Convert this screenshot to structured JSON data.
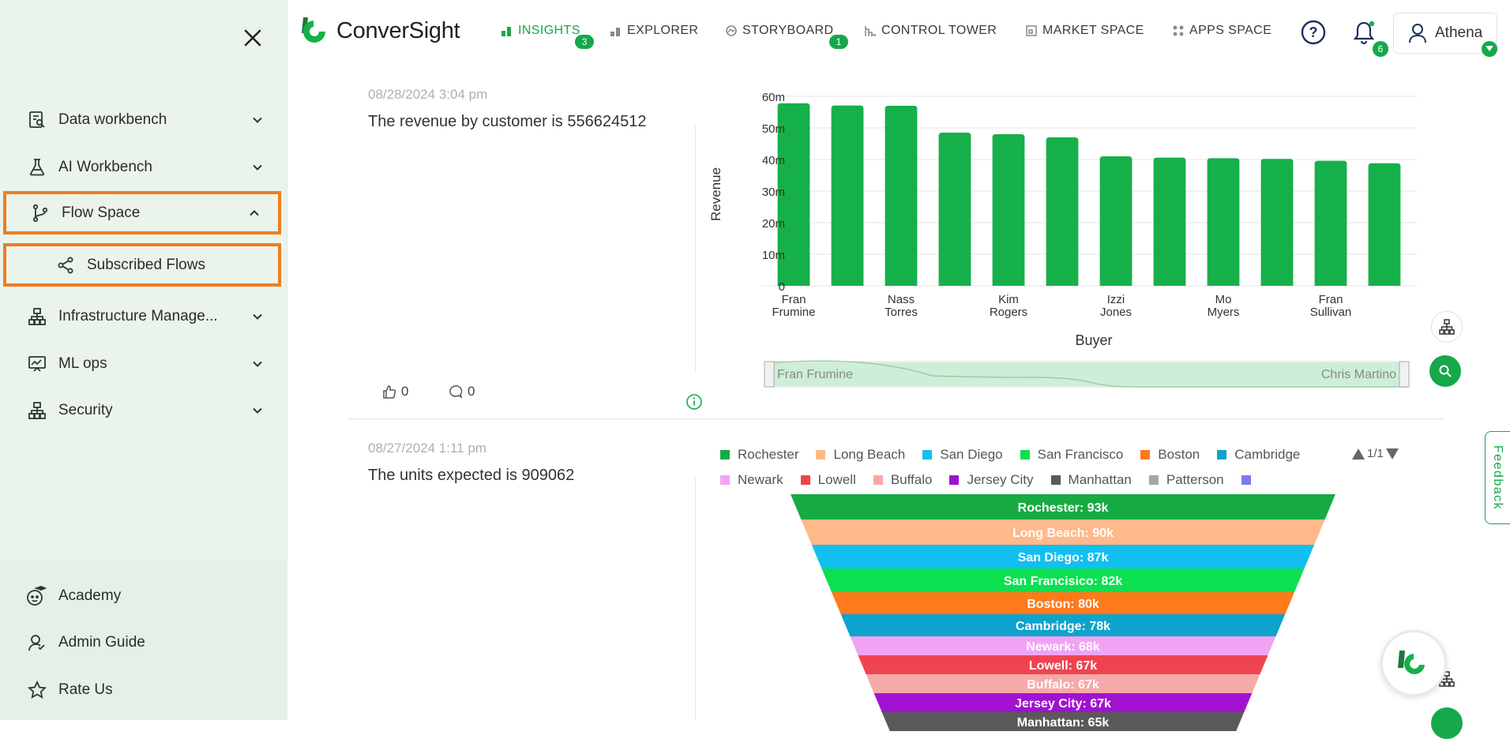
{
  "sidebar": {
    "items": [
      {
        "label": "Data workbench",
        "icon": "data-workbench-icon"
      },
      {
        "label": "AI Workbench",
        "icon": "flask-icon"
      },
      {
        "label": "Flow Space",
        "icon": "flow-icon"
      },
      {
        "label": "Subscribed Flows",
        "icon": "share-icon"
      },
      {
        "label": "Infrastructure Manage...",
        "icon": "infrastructure-icon"
      },
      {
        "label": "ML ops",
        "icon": "ml-ops-icon"
      },
      {
        "label": "Security",
        "icon": "security-icon"
      }
    ],
    "bottom": [
      {
        "label": "Academy",
        "icon": "academy-icon"
      },
      {
        "label": "Admin Guide",
        "icon": "admin-guide-icon"
      },
      {
        "label": "Rate Us",
        "icon": "star-icon"
      }
    ]
  },
  "header": {
    "logo_text": "ConverSight",
    "nav": [
      {
        "label": "INSIGHTS",
        "badge": "3"
      },
      {
        "label": "EXPLORER"
      },
      {
        "label": "STORYBOARD",
        "badge": "1"
      },
      {
        "label": "CONTROL TOWER"
      },
      {
        "label": "MARKET SPACE"
      },
      {
        "label": "APPS SPACE"
      }
    ],
    "notifications_count": "6",
    "user_name": "Athena"
  },
  "insights": [
    {
      "date": "08/28/2024 3:04 pm",
      "text": "The revenue by customer is 556624512",
      "likes": "0",
      "comments": "0"
    },
    {
      "date": "08/27/2024 1:11 pm",
      "text": "The units expected is 909062"
    }
  ],
  "slider": {
    "left_label": "Fran Frumine",
    "right_label": "Chris Martino"
  },
  "pager": "1/1",
  "feedback_label": "Feedback",
  "colors": {
    "accent": "#16a84a",
    "highlight": "#f07d20",
    "sidebar_bg": "#eaf4ec"
  },
  "chart_data": [
    {
      "type": "bar",
      "xlabel": "Buyer",
      "ylabel": "Revenue",
      "ylim": [
        0,
        60
      ],
      "yticks": [
        "0",
        "10m",
        "20m",
        "30m",
        "40m",
        "50m",
        "60m"
      ],
      "x_tick_labels": [
        {
          "index": 0,
          "label": [
            "Fran",
            "Frumine"
          ]
        },
        {
          "index": 2,
          "label": [
            "Nass",
            "Torres"
          ]
        },
        {
          "index": 4,
          "label": [
            "Kim",
            "Rogers"
          ]
        },
        {
          "index": 6,
          "label": [
            "Izzi",
            "Jones"
          ]
        },
        {
          "index": 8,
          "label": [
            "Mo",
            "Myers"
          ]
        },
        {
          "index": 10,
          "label": [
            "Fran",
            "Sullivan"
          ]
        }
      ],
      "values": [
        57.8,
        57.1,
        57.0,
        48.5,
        48.0,
        47.0,
        41.0,
        40.6,
        40.4,
        40.2,
        39.6,
        38.8
      ],
      "color": "#16b04a",
      "grid": true
    },
    {
      "type": "funnel",
      "legend_placement": "top",
      "series": [
        {
          "name": "Rochester",
          "label": "Rochester: 93k",
          "value": 93,
          "color": "#16ab42"
        },
        {
          "name": "Long Beach",
          "label": "Long Beach: 90k",
          "value": 90,
          "color": "#ffb98a"
        },
        {
          "name": "San Diego",
          "label": "San Diego: 87k",
          "value": 87,
          "color": "#12bff0"
        },
        {
          "name": "San Francisco",
          "label": "San Francisico: 82k",
          "value": 82,
          "color": "#0ce050"
        },
        {
          "name": "Boston",
          "label": "Boston: 80k",
          "value": 80,
          "color": "#ff7a1a"
        },
        {
          "name": "Cambridge",
          "label": "Cambridge: 78k",
          "value": 78,
          "color": "#0ea3cc"
        },
        {
          "name": "Newark",
          "label": "Newark: 68k",
          "value": 68,
          "color": "#f0a3f5"
        },
        {
          "name": "Lowell",
          "label": "Lowell: 67k",
          "value": 67,
          "color": "#ef4450"
        },
        {
          "name": "Buffalo",
          "label": "Buffalo: 67k",
          "value": 67,
          "color": "#f7a9a9"
        },
        {
          "name": "Jersey City",
          "label": "Jersey City: 67k",
          "value": 67,
          "color": "#a012d0"
        },
        {
          "name": "Manhattan",
          "label": "Manhattan: 65k",
          "value": 65,
          "color": "#5a5a5a"
        },
        {
          "name": "Patterson",
          "value": null,
          "color": "#a6a6a6"
        },
        {
          "name": "",
          "value": null,
          "color": "#7b7bf0"
        }
      ]
    }
  ]
}
